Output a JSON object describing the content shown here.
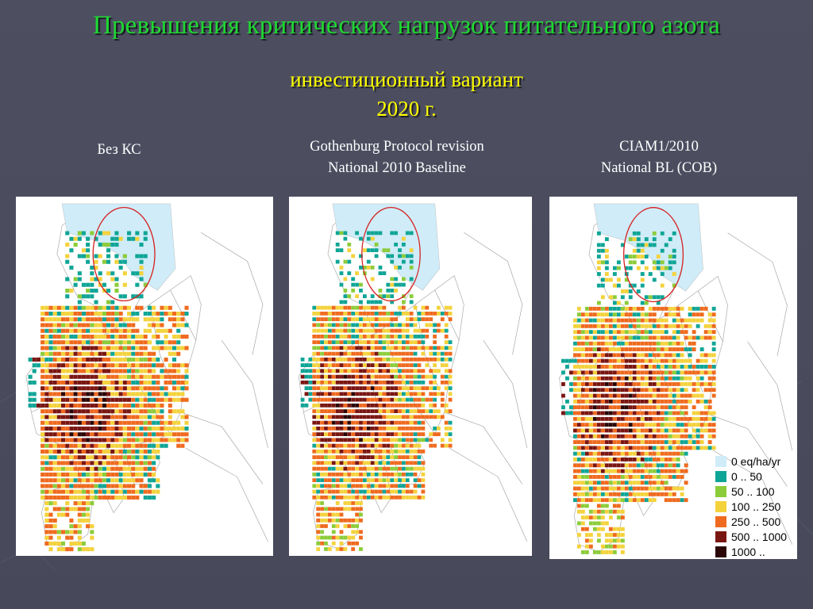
{
  "slide": {
    "title": "Превышения критических нагрузок питательного азота",
    "subtitle_line1": "инвестиционный вариант",
    "subtitle_line2": "2020 г."
  },
  "panels": [
    {
      "caption_line1": "Без КС",
      "caption_line2": ""
    },
    {
      "caption_line1": "Gothenburg Protocol revision",
      "caption_line2": "National 2010 Baseline"
    },
    {
      "caption_line1": "CIAM1/2010",
      "caption_line2": "National BL (COB)"
    }
  ],
  "legend": [
    {
      "label": "0 eq/ha/yr",
      "color": "#cfecf8"
    },
    {
      "label": "0 .. 50",
      "color": "#0fa596"
    },
    {
      "label": "50 .. 100",
      "color": "#8ccc3a"
    },
    {
      "label": "100 .. 250",
      "color": "#f4d23c"
    },
    {
      "label": "250 .. 500",
      "color": "#ef6a1e"
    },
    {
      "label": "500 .. 1000",
      "color": "#7a1612"
    },
    {
      "label": "1000 ..",
      "color": "#2a0606"
    }
  ],
  "colors": {
    "title": "#1fd832",
    "subtitle": "#ffff00",
    "caption": "#ffffff",
    "highlight_circle": "#d62020",
    "background": "#4a4c5e"
  }
}
